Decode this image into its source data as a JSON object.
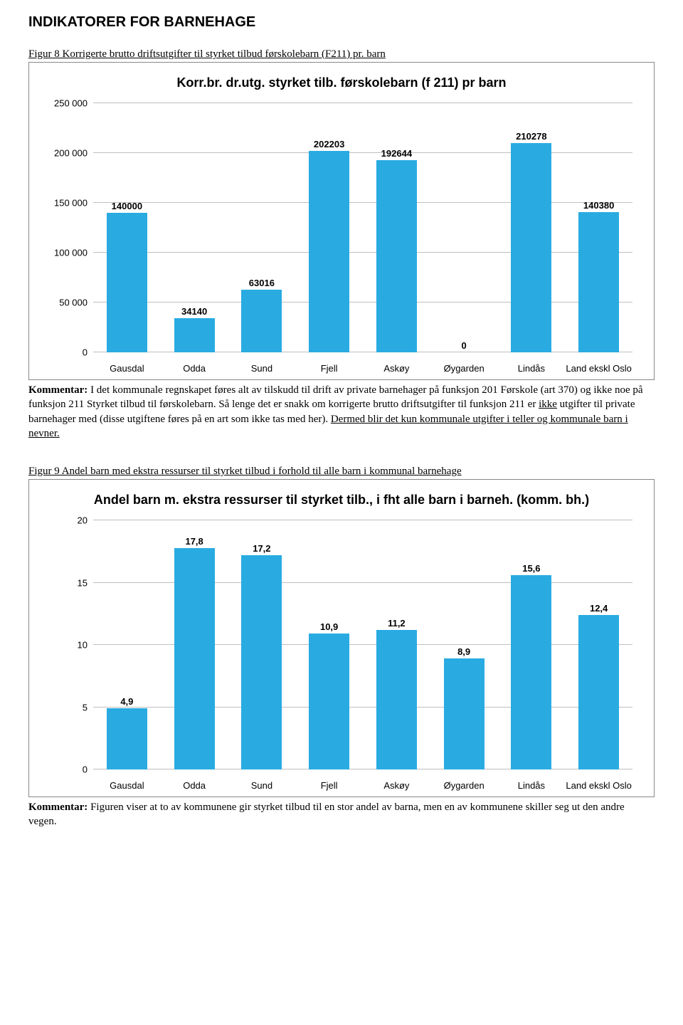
{
  "pageTitle": "INDIKATORER FOR BARNEHAGE",
  "figure8": {
    "caption": "Figur 8 Korrigerte brutto driftsutgifter til styrket tilbud førskolebarn (F211) pr. barn",
    "chart": {
      "type": "bar",
      "title": "Korr.br. dr.utg. styrket tilb. førskolebarn (f 211) pr barn",
      "categories": [
        "Gausdal",
        "Odda",
        "Sund",
        "Fjell",
        "Askøy",
        "Øygarden",
        "Lindås",
        "Land ekskl Oslo"
      ],
      "values": [
        140000,
        34140,
        63016,
        202203,
        192644,
        0,
        210278,
        140380
      ],
      "labels": [
        "140000",
        "34140",
        "63016",
        "202203",
        "192644",
        "0",
        "210278",
        "140380"
      ],
      "bar_color": "#29abe2",
      "grid_color": "#bfbfbf",
      "ymin": 0,
      "ymax": 250000,
      "ystep": 50000,
      "yticklabels": [
        "0",
        "50 000",
        "100 000",
        "150 000",
        "200 000",
        "250 000"
      ],
      "bar_width": 0.6,
      "title_fontsize": 18,
      "label_fontsize": 13
    },
    "commentaryLead": "Kommentar:",
    "commentaryHtml": " I det kommunale regnskapet føres alt av tilskudd til drift av private barnehager på funksjon 201 Førskole (art 370) og ikke noe på funksjon 211 Styrket tilbud til førskolebarn. Så lenge det er snakk om korrigerte brutto driftsutgifter til funksjon 211 er <u>ikke</u> utgifter til private barnehager med (disse utgiftene føres på en art som ikke tas med her). <u>Dermed blir det kun kommunale utgifter i teller og kommunale barn i nevner.</u>"
  },
  "figure9": {
    "caption": "Figur 9 Andel barn med ekstra ressurser til styrket tilbud i forhold til alle barn i kommunal barnehage",
    "chart": {
      "type": "bar",
      "title": "Andel barn m. ekstra ressurser til styrket tilb., i fht alle barn i barneh. (komm. bh.)",
      "categories": [
        "Gausdal",
        "Odda",
        "Sund",
        "Fjell",
        "Askøy",
        "Øygarden",
        "Lindås",
        "Land ekskl Oslo"
      ],
      "values": [
        4.9,
        17.8,
        17.2,
        10.9,
        11.2,
        8.9,
        15.6,
        12.4
      ],
      "labels": [
        "4,9",
        "17,8",
        "17,2",
        "10,9",
        "11,2",
        "8,9",
        "15,6",
        "12,4"
      ],
      "bar_color": "#29abe2",
      "grid_color": "#bfbfbf",
      "ymin": 0,
      "ymax": 20,
      "ystep": 5,
      "yticklabels": [
        "0",
        "5",
        "10",
        "15",
        "20"
      ],
      "bar_width": 0.6,
      "title_fontsize": 18,
      "label_fontsize": 13
    },
    "commentaryLead": "Kommentar:",
    "commentaryHtml": " Figuren viser at to av kommunene gir styrket tilbud til en stor andel av barna, men en av kommunene skiller seg ut den andre vegen."
  }
}
